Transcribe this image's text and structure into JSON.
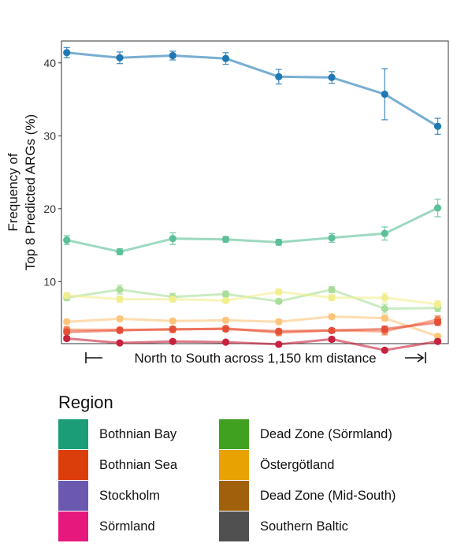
{
  "chart_data": {
    "type": "line",
    "xlabel": "North to South across 1,150 km distance",
    "ylabel_lines": [
      "Frequency of",
      "Top 8 Predicted ARGs (%)"
    ],
    "yticks": [
      10,
      20,
      30,
      40
    ],
    "ylim": [
      1.5,
      43
    ],
    "x": [
      1,
      2,
      3,
      4,
      5,
      6,
      7,
      8
    ],
    "xlim": [
      0.9,
      8.2
    ],
    "grid": false,
    "series": [
      {
        "color": "#1f78b4",
        "values": [
          41.4,
          40.7,
          41.0,
          40.6,
          38.1,
          38.0,
          35.7,
          31.3
        ],
        "errors": [
          0.7,
          0.8,
          0.6,
          0.8,
          1.0,
          0.8,
          3.5,
          1.1
        ]
      },
      {
        "color": "#5bbf97",
        "values": [
          15.7,
          14.1,
          15.9,
          15.8,
          15.4,
          16.0,
          16.6,
          20.1
        ],
        "errors": [
          0.6,
          0.4,
          0.8,
          0.4,
          0.4,
          0.6,
          0.9,
          1.2
        ]
      },
      {
        "color": "#a9dd9a",
        "values": [
          7.8,
          8.9,
          7.9,
          8.3,
          7.3,
          8.9,
          6.3,
          6.4
        ],
        "errors": [
          0.4,
          0.6,
          0.5,
          0.4,
          0.3,
          0.4,
          0.6,
          0.5
        ]
      },
      {
        "color": "#f1ee8e",
        "values": [
          8.1,
          7.6,
          7.6,
          7.4,
          8.6,
          7.8,
          7.8,
          6.9
        ],
        "errors": [
          0.4,
          0.4,
          0.4,
          0.3,
          0.4,
          0.4,
          0.6,
          0.5
        ]
      },
      {
        "color": "#fcc57a",
        "values": [
          4.5,
          4.9,
          4.6,
          4.7,
          4.5,
          5.2,
          5.0,
          2.5
        ],
        "errors": [
          0.3,
          0.3,
          0.3,
          0.3,
          0.3,
          0.3,
          0.4,
          0.3
        ]
      },
      {
        "color": "#f57a4c",
        "values": [
          3.4,
          3.4,
          3.4,
          3.6,
          3.0,
          3.3,
          3.2,
          4.8
        ],
        "errors": [
          0.4,
          0.3,
          0.4,
          0.3,
          0.4,
          0.3,
          0.5,
          0.5
        ]
      },
      {
        "color": "#e44f38",
        "values": [
          3.1,
          3.3,
          3.5,
          3.5,
          3.2,
          3.3,
          3.5,
          4.4
        ],
        "errors": [
          0.3,
          0.3,
          0.3,
          0.3,
          0.3,
          0.3,
          0.4,
          0.4
        ]
      },
      {
        "color": "#c8223c",
        "values": [
          2.2,
          1.6,
          1.8,
          1.7,
          1.4,
          2.1,
          0.6,
          1.8
        ],
        "errors": [
          0.3,
          0.2,
          0.2,
          0.2,
          0.2,
          0.3,
          0.2,
          0.3
        ]
      }
    ]
  },
  "legend": {
    "title": "Region",
    "items": [
      {
        "label": "Bothnian Bay",
        "color": "#1b9e77"
      },
      {
        "label": "Dead Zone (Sörmland)",
        "color": "#3fa11f"
      },
      {
        "label": "Bothnian Sea",
        "color": "#dc3e0b"
      },
      {
        "label": "Östergötland",
        "color": "#e8a202"
      },
      {
        "label": "Stockholm",
        "color": "#6b59b0"
      },
      {
        "label": "Dead Zone (Mid-South)",
        "color": "#a0600c"
      },
      {
        "label": "Sörmland",
        "color": "#e7187d"
      },
      {
        "label": "Southern Baltic",
        "color": "#505050"
      }
    ]
  }
}
